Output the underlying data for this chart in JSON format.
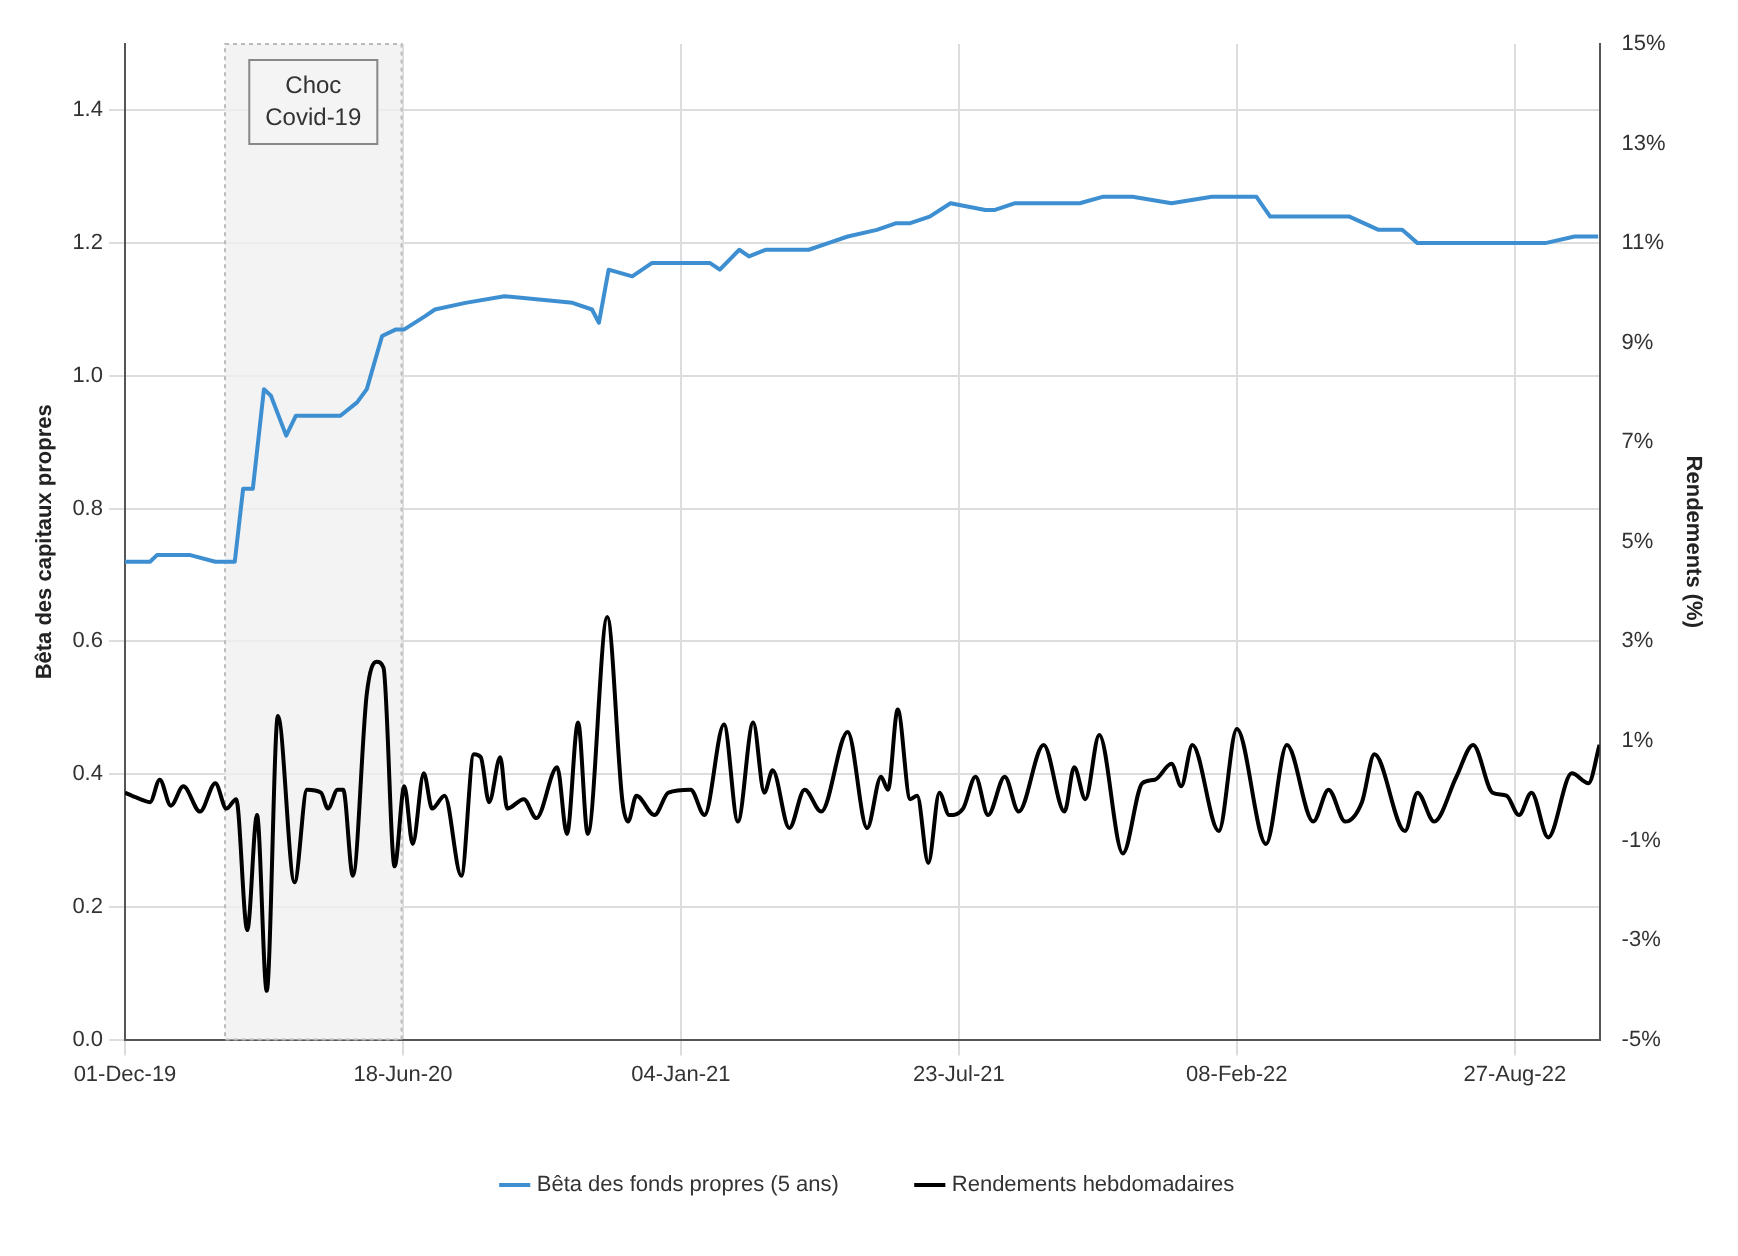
{
  "chart_data": {
    "type": "line",
    "ylabel": "Bêta des capitaux propres",
    "y2label": "Rendements (%)",
    "xlim": [
      "2019-12-01",
      "2022-10-27"
    ],
    "xticks": [
      {
        "value": "2019-12-01",
        "label": "01-Dec-19"
      },
      {
        "value": "2020-06-18",
        "label": "18-Jun-20"
      },
      {
        "value": "2021-01-04",
        "label": "04-Jan-21"
      },
      {
        "value": "2021-07-23",
        "label": "23-Jul-21"
      },
      {
        "value": "2022-02-08",
        "label": "08-Feb-22"
      },
      {
        "value": "2022-08-27",
        "label": "27-Aug-22"
      }
    ],
    "ylim": [
      0,
      1.5
    ],
    "yticks": [
      {
        "value": 0,
        "label": "0.0"
      },
      {
        "value": 0.2,
        "label": "0.2"
      },
      {
        "value": 0.4,
        "label": "0.4"
      },
      {
        "value": 0.6,
        "label": "0.6"
      },
      {
        "value": 0.8,
        "label": "0.8"
      },
      {
        "value": 1,
        "label": "1.0"
      },
      {
        "value": 1.2,
        "label": "1.2"
      },
      {
        "value": 1.4,
        "label": "1.4"
      }
    ],
    "y2lim": [
      -5,
      15
    ],
    "y2ticks": [
      {
        "value": -5,
        "label": "-5%"
      },
      {
        "value": -3,
        "label": "-3%"
      },
      {
        "value": -1,
        "label": "-1%"
      },
      {
        "value": 1,
        "label": "1%"
      },
      {
        "value": 3,
        "label": "3%"
      },
      {
        "value": 5,
        "label": "5%"
      },
      {
        "value": 7,
        "label": "7%"
      },
      {
        "value": 9,
        "label": "9%"
      },
      {
        "value": 11,
        "label": "11%"
      },
      {
        "value": 13,
        "label": "13%"
      },
      {
        "value": 15,
        "label": "15%"
      }
    ],
    "grid": true,
    "legend": "bottom",
    "marker": "none",
    "line_style": "solid",
    "bands": [
      {
        "axis": "x",
        "from": "2020-02-11",
        "to": "2020-06-17",
        "label": "Choc Covid-19",
        "color": "#f0f0f0"
      }
    ],
    "series": [
      {
        "name": "Bêta des fonds propres (5 ans)",
        "color": "#3d8fd1",
        "x": [
          "2019-12-01",
          "2019-12-19",
          "2019-12-24",
          "2020-01-17",
          "2020-02-04",
          "2020-02-18",
          "2020-02-24",
          "2020-03-02",
          "2020-03-10",
          "2020-03-15",
          "2020-03-26",
          "2020-04-02",
          "2020-05-04",
          "2020-05-16",
          "2020-05-23",
          "2020-06-03",
          "2020-06-13",
          "2020-06-19",
          "2020-07-04",
          "2020-07-11",
          "2020-08-02",
          "2020-08-30",
          "2020-10-18",
          "2020-11-01",
          "2020-11-06",
          "2020-11-13",
          "2020-11-30",
          "2020-12-14",
          "2021-01-25",
          "2021-02-01",
          "2021-02-15",
          "2021-02-22",
          "2021-03-06",
          "2021-04-06",
          "2021-04-20",
          "2021-05-04",
          "2021-05-25",
          "2021-06-08",
          "2021-06-18",
          "2021-07-02",
          "2021-07-17",
          "2021-08-11",
          "2021-08-18",
          "2021-09-01",
          "2021-09-08",
          "2021-09-15",
          "2021-10-07",
          "2021-10-18",
          "2021-11-04",
          "2021-11-25",
          "2021-12-23",
          "2022-01-21",
          "2022-02-04",
          "2022-02-22",
          "2022-03-04",
          "2022-03-25",
          "2022-04-08",
          "2022-04-30",
          "2022-05-21",
          "2022-06-07",
          "2022-06-18",
          "2022-07-16",
          "2022-08-06",
          "2022-08-28",
          "2022-09-18",
          "2022-10-09",
          "2022-10-26"
        ],
        "values": [
          0.72,
          0.72,
          0.73,
          0.73,
          0.72,
          0.72,
          0.83,
          0.83,
          0.98,
          0.97,
          0.91,
          0.94,
          0.94,
          0.96,
          0.98,
          1.06,
          1.07,
          1.07,
          1.09,
          1.1,
          1.11,
          1.12,
          1.11,
          1.1,
          1.08,
          1.16,
          1.15,
          1.17,
          1.17,
          1.16,
          1.19,
          1.18,
          1.19,
          1.19,
          1.2,
          1.21,
          1.22,
          1.23,
          1.23,
          1.24,
          1.26,
          1.25,
          1.25,
          1.26,
          1.26,
          1.26,
          1.26,
          1.26,
          1.27,
          1.27,
          1.26,
          1.27,
          1.27,
          1.27,
          1.24,
          1.24,
          1.24,
          1.24,
          1.22,
          1.22,
          1.2,
          1.2,
          1.2,
          1.2,
          1.2,
          1.21,
          1.21
        ]
      },
      {
        "name": "Rendements hebdomadaires",
        "color": "#000000",
        "axis": "y2",
        "x": [
          "2019-12-01",
          "2019-12-12",
          "2019-12-19",
          "2019-12-26",
          "2020-01-03",
          "2020-01-12",
          "2020-01-24",
          "2020-02-04",
          "2020-02-12",
          "2020-02-19",
          "2020-02-27",
          "2020-03-05",
          "2020-03-12",
          "2020-03-20",
          "2020-04-01",
          "2020-04-10",
          "2020-04-20",
          "2020-04-25",
          "2020-05-02",
          "2020-05-06",
          "2020-05-13",
          "2020-05-23",
          "2020-05-30",
          "2020-06-04",
          "2020-06-12",
          "2020-06-19",
          "2020-06-25",
          "2020-07-03",
          "2020-07-09",
          "2020-07-18",
          "2020-07-30",
          "2020-08-08",
          "2020-08-13",
          "2020-08-19",
          "2020-08-27",
          "2020-09-01",
          "2020-09-13",
          "2020-09-22",
          "2020-10-07",
          "2020-10-14",
          "2020-10-22",
          "2020-10-29",
          "2020-11-12",
          "2020-11-23",
          "2020-11-27",
          "2020-12-03",
          "2020-12-16",
          "2020-12-26",
          "2021-01-11",
          "2021-01-21",
          "2021-02-04",
          "2021-02-14",
          "2021-02-25",
          "2021-03-05",
          "2021-03-11",
          "2021-03-23",
          "2021-04-03",
          "2021-04-15",
          "2021-05-04",
          "2021-05-18",
          "2021-05-28",
          "2021-06-02",
          "2021-06-09",
          "2021-06-18",
          "2021-06-23",
          "2021-07-01",
          "2021-07-09",
          "2021-07-16",
          "2021-07-26",
          "2021-08-04",
          "2021-08-13",
          "2021-08-25",
          "2021-09-04",
          "2021-09-22",
          "2021-10-07",
          "2021-10-14",
          "2021-10-22",
          "2021-11-01",
          "2021-11-18",
          "2021-12-02",
          "2021-12-11",
          "2021-12-23",
          "2021-12-30",
          "2022-01-07",
          "2022-01-26",
          "2022-02-08",
          "2022-03-01",
          "2022-03-16",
          "2022-04-04",
          "2022-04-15",
          "2022-04-27",
          "2022-05-09",
          "2022-05-18",
          "2022-06-09",
          "2022-06-18",
          "2022-06-30",
          "2022-07-16",
          "2022-07-28",
          "2022-08-11",
          "2022-08-21",
          "2022-08-30",
          "2022-09-08",
          "2022-09-20",
          "2022-10-07",
          "2022-10-19",
          "2022-10-27"
        ],
        "values": [
          -0.04,
          -0.17,
          -0.23,
          0.22,
          -0.3,
          0.09,
          -0.42,
          0.15,
          -0.36,
          -0.17,
          -2.8,
          -0.49,
          -4.02,
          1.5,
          -1.84,
          0.02,
          -0.04,
          -0.36,
          0.02,
          0.02,
          -1.71,
          1.95,
          2.59,
          2.47,
          -1.52,
          0.09,
          -1.07,
          0.35,
          -0.36,
          -0.1,
          -1.71,
          0.73,
          0.67,
          -0.23,
          0.67,
          -0.36,
          -0.17,
          -0.55,
          0.47,
          -0.87,
          1.37,
          -0.87,
          3.49,
          -0.23,
          -0.62,
          -0.1,
          -0.49,
          -0.04,
          0.02,
          -0.49,
          1.33,
          -0.62,
          1.37,
          -0.04,
          0.41,
          -0.75,
          0.02,
          -0.42,
          1.18,
          -0.75,
          0.28,
          0.02,
          1.63,
          -0.17,
          -0.1,
          -1.45,
          -0.04,
          -0.49,
          -0.36,
          0.28,
          -0.49,
          0.28,
          -0.42,
          0.92,
          -0.42,
          0.47,
          -0.17,
          1.12,
          -1.26,
          0.15,
          0.22,
          0.54,
          0.09,
          0.92,
          -0.81,
          1.24,
          -1.07,
          0.92,
          -0.62,
          0.02,
          -0.62,
          -0.23,
          0.73,
          -0.81,
          -0.04,
          -0.62,
          0.28,
          0.92,
          -0.04,
          -0.1,
          -0.49,
          -0.04,
          -0.94,
          0.35,
          0.15,
          0.92
        ]
      }
    ]
  }
}
